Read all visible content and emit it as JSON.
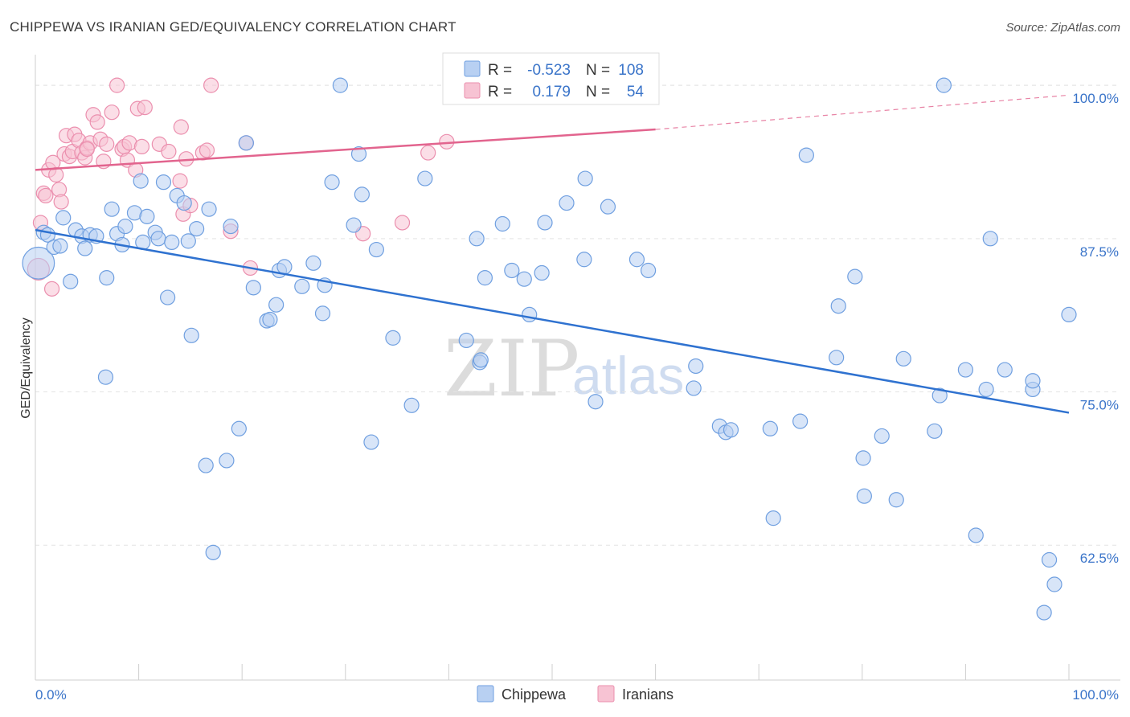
{
  "title": "CHIPPEWA VS IRANIAN GED/EQUIVALENCY CORRELATION CHART",
  "source": "Source: ZipAtlas.com",
  "watermark": {
    "zip": "ZIP",
    "atlas": "atlas"
  },
  "colors": {
    "chippewa_fill": "#b8d0f2",
    "chippewa_stroke": "#6f9fe0",
    "chippewa_line": "#2f72d0",
    "iranian_fill": "#f7c3d3",
    "iranian_stroke": "#eb8fae",
    "iranian_line": "#e2648e",
    "grid": "#e4e4e4",
    "tick_label": "#3a74c9"
  },
  "legend": {
    "r_label": "R =",
    "n_label": "N =",
    "chippewa": {
      "r": "-0.523",
      "n": "108"
    },
    "iranian": {
      "r": "0.179",
      "n": "54"
    }
  },
  "chart_data": {
    "type": "scatter",
    "title": "CHIPPEWA VS IRANIAN GED/EQUIVALENCY CORRELATION CHART",
    "xlabel": "",
    "ylabel": "GED/Equivalency",
    "xlim": [
      0,
      100
    ],
    "ylim": [
      51.5,
      102.5
    ],
    "x_tick_labels": [
      "0.0%",
      "100.0%"
    ],
    "y_ticks": [
      62.5,
      75.0,
      87.5,
      100.0
    ],
    "y_tick_labels": [
      "62.5%",
      "75.0%",
      "87.5%",
      "100.0%"
    ],
    "grid": true,
    "legend_position": "top-center",
    "series": [
      {
        "name": "Chippewa",
        "r": -0.523,
        "n": 108,
        "trend": {
          "x": [
            0,
            100
          ],
          "y": [
            88.2,
            73.3
          ]
        },
        "points": [
          [
            0.3,
            85.5,
            2.2
          ],
          [
            0.8,
            88.0,
            1
          ],
          [
            1.2,
            87.8,
            1
          ],
          [
            1.8,
            86.8,
            1
          ],
          [
            2.4,
            86.9,
            1
          ],
          [
            2.7,
            89.2,
            1
          ],
          [
            3.4,
            84.0,
            1
          ],
          [
            3.9,
            88.2,
            1
          ],
          [
            4.5,
            87.7,
            1
          ],
          [
            4.8,
            86.7,
            1
          ],
          [
            5.3,
            87.8,
            1
          ],
          [
            5.9,
            87.7,
            1
          ],
          [
            6.8,
            76.2,
            1
          ],
          [
            6.9,
            84.3,
            1
          ],
          [
            7.4,
            89.9,
            1
          ],
          [
            7.9,
            87.9,
            1
          ],
          [
            8.4,
            87.0,
            1
          ],
          [
            8.7,
            88.5,
            1
          ],
          [
            9.6,
            89.6,
            1
          ],
          [
            10.2,
            92.2,
            1
          ],
          [
            10.4,
            87.2,
            1
          ],
          [
            10.8,
            89.3,
            1
          ],
          [
            11.6,
            88.0,
            1
          ],
          [
            11.9,
            87.5,
            1
          ],
          [
            12.4,
            92.1,
            1
          ],
          [
            12.8,
            82.7,
            1
          ],
          [
            13.2,
            87.2,
            1
          ],
          [
            13.7,
            91.0,
            1
          ],
          [
            14.4,
            90.4,
            1
          ],
          [
            14.8,
            87.3,
            1
          ],
          [
            15.1,
            79.6,
            1
          ],
          [
            15.6,
            88.3,
            1
          ],
          [
            16.5,
            69.0,
            1
          ],
          [
            16.8,
            89.9,
            1
          ],
          [
            17.2,
            61.9,
            1
          ],
          [
            18.5,
            69.4,
            1
          ],
          [
            18.9,
            88.5,
            1
          ],
          [
            19.7,
            72.0,
            1
          ],
          [
            20.4,
            95.3,
            1
          ],
          [
            21.1,
            83.5,
            1
          ],
          [
            22.4,
            80.8,
            1
          ],
          [
            22.7,
            80.9,
            1
          ],
          [
            23.3,
            82.1,
            1
          ],
          [
            23.6,
            84.9,
            1
          ],
          [
            24.1,
            85.2,
            1
          ],
          [
            25.8,
            83.6,
            1
          ],
          [
            26.9,
            85.5,
            1
          ],
          [
            27.8,
            81.4,
            1
          ],
          [
            28.0,
            83.7,
            1
          ],
          [
            28.7,
            92.1,
            1
          ],
          [
            29.5,
            100.0,
            1
          ],
          [
            30.8,
            88.6,
            1
          ],
          [
            31.3,
            94.4,
            1
          ],
          [
            31.6,
            91.1,
            1
          ],
          [
            32.5,
            70.9,
            1
          ],
          [
            33.0,
            86.6,
            1
          ],
          [
            34.6,
            79.4,
            1
          ],
          [
            36.4,
            73.9,
            1
          ],
          [
            37.7,
            92.4,
            1
          ],
          [
            41.7,
            79.2,
            1
          ],
          [
            42.7,
            87.5,
            1
          ],
          [
            43.0,
            77.4,
            1
          ],
          [
            43.1,
            77.6,
            1
          ],
          [
            43.5,
            84.3,
            1
          ],
          [
            45.2,
            88.7,
            1
          ],
          [
            46.1,
            84.9,
            1
          ],
          [
            47.3,
            84.2,
            1
          ],
          [
            47.8,
            81.3,
            1
          ],
          [
            49.0,
            84.7,
            1
          ],
          [
            49.3,
            88.8,
            1
          ],
          [
            51.4,
            90.4,
            1
          ],
          [
            53.1,
            85.8,
            1
          ],
          [
            53.2,
            92.4,
            1
          ],
          [
            54.2,
            74.2,
            1
          ],
          [
            55.4,
            90.1,
            1
          ],
          [
            58.2,
            85.8,
            1
          ],
          [
            59.3,
            84.9,
            1
          ],
          [
            63.7,
            75.3,
            1
          ],
          [
            63.9,
            77.1,
            1
          ],
          [
            66.2,
            72.2,
            1
          ],
          [
            66.8,
            71.7,
            1
          ],
          [
            67.3,
            71.9,
            1
          ],
          [
            71.4,
            64.7,
            1
          ],
          [
            71.1,
            72.0,
            1
          ],
          [
            74.0,
            72.6,
            1
          ],
          [
            74.6,
            94.3,
            1
          ],
          [
            77.5,
            77.8,
            1
          ],
          [
            77.7,
            82.0,
            1
          ],
          [
            79.3,
            84.4,
            1
          ],
          [
            80.2,
            66.5,
            1
          ],
          [
            80.1,
            69.6,
            1
          ],
          [
            81.9,
            71.4,
            1
          ],
          [
            83.3,
            66.2,
            1
          ],
          [
            84.0,
            77.7,
            1
          ],
          [
            87.0,
            71.8,
            1
          ],
          [
            87.5,
            74.7,
            1
          ],
          [
            87.9,
            100.0,
            1
          ],
          [
            90.0,
            76.8,
            1
          ],
          [
            91.0,
            63.3,
            1
          ],
          [
            92.0,
            75.2,
            1
          ],
          [
            92.4,
            87.5,
            1
          ],
          [
            93.8,
            76.8,
            1
          ],
          [
            96.5,
            75.2,
            1
          ],
          [
            96.5,
            75.9,
            1
          ],
          [
            97.6,
            57.0,
            1
          ],
          [
            98.1,
            61.3,
            1
          ],
          [
            98.6,
            59.3,
            1
          ],
          [
            100.0,
            81.3,
            1
          ]
        ]
      },
      {
        "name": "Iranians",
        "r": 0.179,
        "n": 54,
        "trend": {
          "x": [
            0,
            60
          ],
          "y": [
            93.1,
            96.4
          ]
        },
        "trend_extension": {
          "x": [
            60,
            100
          ],
          "y": [
            96.4,
            99.2
          ]
        },
        "points": [
          [
            0.3,
            85.0,
            1.5
          ],
          [
            0.5,
            88.8,
            1
          ],
          [
            0.8,
            91.2,
            1
          ],
          [
            1.0,
            91.0,
            1
          ],
          [
            1.3,
            93.1,
            1
          ],
          [
            1.6,
            83.4,
            1
          ],
          [
            1.7,
            93.7,
            1
          ],
          [
            2.0,
            92.7,
            1
          ],
          [
            2.3,
            91.5,
            1
          ],
          [
            2.5,
            90.5,
            1
          ],
          [
            2.8,
            94.4,
            1
          ],
          [
            3.0,
            95.9,
            1
          ],
          [
            3.3,
            94.2,
            1
          ],
          [
            3.6,
            94.6,
            1
          ],
          [
            3.8,
            96.0,
            1
          ],
          [
            4.2,
            95.5,
            1
          ],
          [
            4.5,
            94.5,
            1
          ],
          [
            4.8,
            94.1,
            1
          ],
          [
            5.0,
            94.9,
            1
          ],
          [
            5.3,
            95.3,
            1
          ],
          [
            5.6,
            97.6,
            1
          ],
          [
            6.0,
            97.0,
            1
          ],
          [
            6.3,
            95.6,
            1
          ],
          [
            6.6,
            93.8,
            1
          ],
          [
            6.9,
            95.2,
            1
          ],
          [
            7.4,
            97.8,
            1
          ],
          [
            7.9,
            100.0,
            1
          ],
          [
            8.4,
            94.8,
            1
          ],
          [
            8.6,
            95.0,
            1
          ],
          [
            8.9,
            93.9,
            1
          ],
          [
            9.1,
            95.3,
            1
          ],
          [
            9.7,
            93.1,
            1
          ],
          [
            9.9,
            98.1,
            1
          ],
          [
            10.3,
            95.0,
            1
          ],
          [
            10.6,
            98.2,
            1
          ],
          [
            12.0,
            95.2,
            1
          ],
          [
            12.9,
            94.6,
            1
          ],
          [
            14.0,
            92.2,
            1
          ],
          [
            14.1,
            96.6,
            1
          ],
          [
            14.3,
            89.5,
            1
          ],
          [
            14.6,
            94.0,
            1
          ],
          [
            15.0,
            90.2,
            1
          ],
          [
            16.2,
            94.5,
            1
          ],
          [
            16.6,
            94.7,
            1
          ],
          [
            17.0,
            100.0,
            1
          ],
          [
            18.9,
            88.1,
            1
          ],
          [
            20.8,
            85.1,
            1
          ],
          [
            20.4,
            95.3,
            1
          ],
          [
            31.7,
            87.9,
            1
          ],
          [
            39.8,
            95.4,
            1
          ],
          [
            35.5,
            88.8,
            1
          ],
          [
            38.0,
            94.5,
            1
          ],
          [
            52.0,
            100.0,
            1
          ],
          [
            5.0,
            94.8,
            1
          ]
        ]
      }
    ]
  }
}
